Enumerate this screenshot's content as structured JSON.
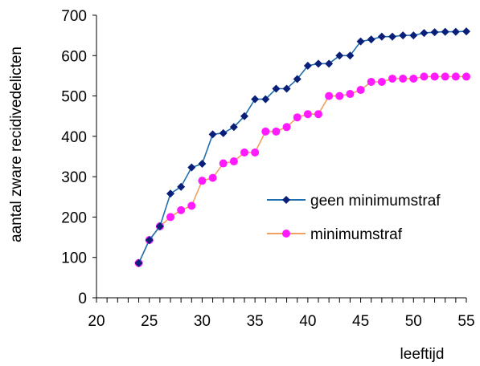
{
  "chart_data": {
    "type": "line",
    "title": "",
    "xlabel": "leeftijd",
    "ylabel": "aantal zware recidivedelicten",
    "xlim": [
      20,
      55
    ],
    "ylim": [
      0,
      700
    ],
    "x_ticks": [
      20,
      25,
      30,
      35,
      40,
      45,
      50,
      55
    ],
    "y_ticks": [
      0,
      100,
      200,
      300,
      400,
      500,
      600,
      700
    ],
    "x_tick_labels": [
      "20",
      "25",
      "30",
      "35",
      "40",
      "45",
      "50",
      "55"
    ],
    "y_tick_labels": [
      "0",
      "100",
      "200",
      "300",
      "400",
      "500",
      "600",
      "700"
    ],
    "grid": false,
    "legend_position": "right",
    "x": [
      24,
      25,
      26,
      27,
      28,
      29,
      30,
      31,
      32,
      33,
      34,
      35,
      36,
      37,
      38,
      39,
      40,
      41,
      42,
      43,
      44,
      45,
      46,
      47,
      48,
      49,
      50,
      51,
      52,
      53,
      54,
      55
    ],
    "series": [
      {
        "name": "geen minimumstraf",
        "line_color": "#1f6fb0",
        "marker_color": "#0a1f7a",
        "marker": "diamond",
        "values": [
          86,
          143,
          177,
          258,
          275,
          323,
          332,
          405,
          408,
          423,
          450,
          492,
          492,
          518,
          518,
          542,
          575,
          580,
          580,
          600,
          600,
          635,
          640,
          647,
          647,
          650,
          650,
          656,
          658,
          659,
          659,
          660
        ]
      },
      {
        "name": "minimumstraf",
        "line_color": "#f0a060",
        "marker_color": "#ff1aff",
        "marker": "circle",
        "values": [
          86,
          143,
          177,
          200,
          217,
          228,
          290,
          297,
          333,
          338,
          360,
          360,
          412,
          412,
          423,
          447,
          455,
          455,
          500,
          500,
          505,
          515,
          535,
          535,
          543,
          543,
          543,
          548,
          548,
          548,
          548,
          548
        ]
      }
    ]
  }
}
